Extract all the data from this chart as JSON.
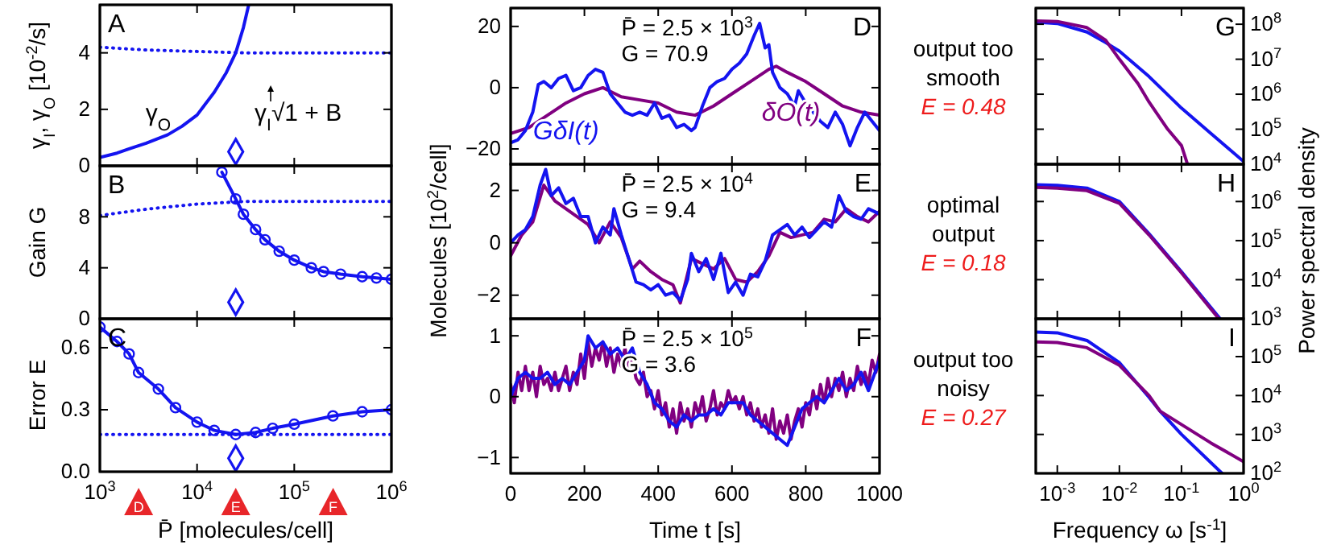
{
  "chart_data": [
    {
      "type": "line",
      "title": "A",
      "ylabel": "γ$_{I}$, γ$_{O}$ [10$^{-2}$/s]",
      "log": "x",
      "grid": false,
      "tick_labels": "y",
      "xlim": [
        1000,
        1000000
      ],
      "xticks": [
        {
          "value": 1000,
          "label": null
        },
        {
          "value": 10000,
          "label": null
        },
        {
          "value": 100000,
          "label": null
        },
        {
          "value": 1000000,
          "label": null
        }
      ],
      "ylim": [
        0,
        5.7
      ],
      "yticks": [
        0,
        2,
        4
      ],
      "annotations": [
        "γ$_{O}$",
        "γ$_{I}$√1 + B"
      ],
      "series": [
        {
          "color": "#1414f0",
          "line_style": "solid",
          "x": [
            1000,
            1500,
            2000,
            3000,
            5000,
            7000,
            10000,
            15000,
            20000,
            25000,
            30000,
            34000
          ],
          "values": [
            0.3,
            0.45,
            0.6,
            0.8,
            1.1,
            1.4,
            1.8,
            2.6,
            3.3,
            4.0,
            4.9,
            5.7
          ]
        },
        {
          "color": "#1414f0",
          "line_style": "dotted",
          "x": [
            1000,
            3000,
            10000,
            30000,
            100000,
            1000000
          ],
          "values": [
            4.2,
            4.1,
            4.05,
            4.0,
            4.0,
            4.0
          ]
        },
        {
          "type": "scatter",
          "marker": "diamond",
          "color": "#1414f0",
          "x": [
            25000
          ],
          "values": [
            0.5
          ]
        }
      ]
    },
    {
      "type": "line",
      "title": "B",
      "ylabel": "Gain G",
      "log": "x",
      "grid": false,
      "tick_labels": "y",
      "xlim": [
        1000,
        1000000
      ],
      "xticks": [
        {
          "value": 1000,
          "label": null
        },
        {
          "value": 10000,
          "label": null
        },
        {
          "value": 100000,
          "label": null
        },
        {
          "value": 1000000,
          "label": null
        }
      ],
      "ylim": [
        0,
        12
      ],
      "yticks": [
        0,
        4,
        8
      ],
      "series": [
        {
          "color": "#1414f0",
          "line_style": "solid",
          "marker": "circle",
          "x": [
            18000,
            25000,
            30000,
            40000,
            50000,
            70000,
            100000,
            150000,
            200000,
            300000,
            500000,
            700000,
            1000000
          ],
          "values": [
            11.5,
            9.4,
            8.2,
            7.0,
            6.2,
            5.3,
            4.6,
            4.0,
            3.7,
            3.5,
            3.3,
            3.2,
            3.1
          ]
        },
        {
          "color": "#1414f0",
          "line_style": "dotted",
          "x": [
            1000,
            3000,
            10000,
            30000,
            100000,
            1000000
          ],
          "values": [
            8.1,
            8.6,
            9.0,
            9.2,
            9.2,
            9.2
          ]
        },
        {
          "type": "scatter",
          "marker": "diamond",
          "color": "#1414f0",
          "x": [
            25000
          ],
          "values": [
            1.3
          ]
        }
      ]
    },
    {
      "type": "line",
      "title": "C",
      "ylabel": "Error E",
      "xlabel": "P̄ [molecules/cell]",
      "log": "x",
      "grid": false,
      "xlim": [
        1000,
        1000000
      ],
      "xticks": [
        {
          "value": 1000,
          "label": "10$^{3}$"
        },
        {
          "value": 10000,
          "label": "10$^{4}$"
        },
        {
          "value": 100000,
          "label": "10$^{5}$"
        },
        {
          "value": 1000000,
          "label": "10$^{6}$"
        }
      ],
      "ylim": [
        0,
        0.74
      ],
      "yticks": [
        {
          "value": 0,
          "label": "0.0"
        },
        {
          "value": 0.3,
          "label": "0.3"
        },
        {
          "value": 0.6,
          "label": "0.6"
        }
      ],
      "annotations": [
        "D",
        "E",
        "F"
      ],
      "series": [
        {
          "color": "#1414f0",
          "line_style": "solid",
          "marker": "circle",
          "x": [
            1000,
            1500,
            2000,
            2500,
            4000,
            6000,
            10000,
            15000,
            25000,
            40000,
            60000,
            100000,
            250000,
            500000,
            1000000
          ],
          "values": [
            0.7,
            0.63,
            0.57,
            0.48,
            0.4,
            0.31,
            0.24,
            0.2,
            0.18,
            0.19,
            0.21,
            0.23,
            0.27,
            0.29,
            0.3
          ]
        },
        {
          "color": "#1414f0",
          "line_style": "dotted",
          "x": [
            1000,
            1000000
          ],
          "values": [
            0.18,
            0.18
          ]
        },
        {
          "type": "scatter",
          "marker": "diamond",
          "color": "#1414f0",
          "x": [
            25000
          ],
          "values": [
            0.065
          ]
        }
      ]
    },
    {
      "type": "line",
      "title": "D",
      "grid": false,
      "tick_labels": "y",
      "xlim": [
        0,
        1000
      ],
      "xticks": [
        {
          "value": 0,
          "label": null
        },
        {
          "value": 200,
          "label": null
        },
        {
          "value": 400,
          "label": null
        },
        {
          "value": 600,
          "label": null
        },
        {
          "value": 800,
          "label": null
        },
        {
          "value": 1000,
          "label": null
        }
      ],
      "ylim": [
        -25,
        26
      ],
      "yticks": [
        {
          "value": -20,
          "label": "−20"
        },
        0,
        20
      ],
      "annotations": [
        "P̄ = 2.5 × 10$^{3}$",
        "G = 70.9"
      ],
      "series": [
        {
          "name": "δO(t)",
          "color": "#800080",
          "x": [
            0,
            50,
            100,
            150,
            200,
            250,
            300,
            350,
            400,
            450,
            500,
            550,
            600,
            650,
            700,
            720,
            750,
            800,
            850,
            900,
            950,
            1000
          ],
          "values": [
            -15,
            -13,
            -9,
            -5,
            -2,
            0,
            -3,
            -4,
            -5,
            -8,
            -9,
            -6,
            -2,
            2,
            6,
            7,
            5,
            2,
            -2,
            -6,
            -8,
            -9
          ]
        },
        {
          "name": "GδI(t)",
          "color": "#1414f0",
          "x": [
            0,
            20,
            40,
            60,
            75,
            90,
            110,
            130,
            150,
            170,
            190,
            210,
            230,
            250,
            270,
            290,
            310,
            330,
            350,
            370,
            390,
            410,
            430,
            450,
            470,
            490,
            500,
            520,
            540,
            560,
            580,
            600,
            620,
            640,
            660,
            675,
            690,
            700,
            710,
            730,
            750,
            770,
            780,
            800,
            820,
            840,
            860,
            880,
            900,
            920,
            940,
            960,
            980,
            1000
          ],
          "values": [
            -18,
            -17,
            -14,
            -8,
            1,
            2,
            0,
            3,
            4,
            -1,
            0,
            4,
            6,
            5,
            -2,
            -5,
            -8,
            -9,
            -8,
            -9,
            -5,
            -10,
            -9,
            -13,
            -12,
            -14,
            -13,
            -6,
            0,
            2,
            3,
            6,
            8,
            11,
            17,
            21,
            13,
            14,
            5,
            0,
            -2,
            -6,
            -1,
            -5,
            -8,
            -11,
            -13,
            -8,
            -12,
            -19,
            -13,
            -8,
            -11,
            -14
          ]
        }
      ]
    },
    {
      "type": "line",
      "title": "E",
      "ylabel": "Molecules [10$^{2}$/cell]",
      "grid": false,
      "tick_labels": "y",
      "xlim": [
        0,
        1000
      ],
      "xticks": [
        {
          "value": 0,
          "label": null
        },
        {
          "value": 200,
          "label": null
        },
        {
          "value": 400,
          "label": null
        },
        {
          "value": 600,
          "label": null
        },
        {
          "value": 800,
          "label": null
        },
        {
          "value": 1000,
          "label": null
        }
      ],
      "ylim": [
        -2.9,
        3.0
      ],
      "yticks": [
        {
          "value": -2,
          "label": "−2"
        },
        0,
        2
      ],
      "annotations": [
        "P̄ = 2.5 × 10$^{4}$",
        "G = 9.4"
      ],
      "series": [
        {
          "color": "#800080",
          "x": [
            0,
            30,
            60,
            90,
            120,
            150,
            180,
            210,
            240,
            270,
            300,
            330,
            350,
            380,
            410,
            440,
            460,
            490,
            520,
            550,
            580,
            610,
            640,
            670,
            700,
            730,
            760,
            790,
            820,
            850,
            880,
            910,
            940,
            970,
            1000
          ],
          "values": [
            -0.5,
            0.3,
            0.8,
            2.2,
            1.6,
            1.3,
            1.0,
            0.7,
            0,
            0.8,
            0.2,
            -1.0,
            -0.7,
            -1.1,
            -1.4,
            -1.6,
            -2.3,
            -0.6,
            -0.8,
            -1.0,
            -0.6,
            -1.4,
            -1.5,
            -1.1,
            -0.5,
            0.4,
            0.2,
            0.3,
            0.4,
            0.9,
            0.8,
            1.3,
            1.0,
            0.8,
            1.2
          ]
        },
        {
          "color": "#1414f0",
          "x": [
            0,
            20,
            40,
            60,
            80,
            95,
            110,
            130,
            150,
            170,
            190,
            210,
            230,
            250,
            270,
            280,
            300,
            320,
            340,
            360,
            380,
            400,
            420,
            440,
            460,
            480,
            490,
            510,
            530,
            550,
            570,
            590,
            610,
            630,
            650,
            670,
            690,
            710,
            730,
            750,
            770,
            790,
            810,
            830,
            850,
            870,
            890,
            910,
            930,
            950,
            970,
            1000
          ],
          "values": [
            0,
            0.3,
            0.5,
            1.0,
            2.2,
            2.8,
            1.8,
            2.1,
            1.5,
            1.7,
            1.0,
            1.0,
            0,
            0.6,
            0.3,
            1.3,
            0.3,
            -0.6,
            -1.5,
            -1.6,
            -1.8,
            -1.6,
            -2.0,
            -1.9,
            -2.2,
            -1.4,
            -0.4,
            -1.1,
            -0.6,
            -1.4,
            -0.4,
            -1.9,
            -1.5,
            -2.0,
            -1.2,
            -1.3,
            -0.7,
            0.3,
            0.5,
            0.7,
            0.3,
            0.6,
            0.2,
            0.5,
            0.8,
            0.6,
            1.8,
            1.2,
            1.0,
            0.9,
            1.3,
            1.1
          ]
        }
      ]
    },
    {
      "type": "line",
      "title": "F",
      "xlabel": "Time t [s]",
      "grid": false,
      "xlim": [
        0,
        1000
      ],
      "xticks": [
        0,
        200,
        400,
        600,
        800,
        1000
      ],
      "ylim": [
        -1.26,
        1.28
      ],
      "yticks": [
        {
          "value": -1,
          "label": "−1"
        },
        0,
        1
      ],
      "annotations": [
        "P̄ = 2.5 × 10$^{5}$",
        "G = 3.6"
      ],
      "series": [
        {
          "color": "#800080",
          "x": [
            0,
            10,
            20,
            30,
            40,
            50,
            60,
            70,
            80,
            90,
            100,
            110,
            120,
            130,
            140,
            150,
            160,
            170,
            180,
            190,
            200,
            210,
            220,
            230,
            240,
            250,
            260,
            270,
            280,
            290,
            300,
            310,
            320,
            330,
            340,
            350,
            360,
            370,
            380,
            390,
            400,
            410,
            420,
            430,
            440,
            450,
            460,
            470,
            480,
            490,
            500,
            510,
            520,
            530,
            540,
            550,
            560,
            570,
            580,
            590,
            600,
            610,
            620,
            630,
            640,
            650,
            660,
            670,
            680,
            690,
            700,
            710,
            720,
            730,
            740,
            750,
            760,
            770,
            780,
            790,
            800,
            810,
            820,
            830,
            840,
            850,
            860,
            870,
            880,
            890,
            900,
            910,
            920,
            930,
            940,
            950,
            960,
            970,
            980,
            990,
            1000
          ],
          "values": [
            0.2,
            -0.1,
            0.4,
            0.1,
            0.5,
            0.1,
            0.4,
            0,
            0.5,
            0.2,
            0.3,
            0.1,
            0.4,
            0.1,
            0.3,
            0.5,
            0.1,
            0.4,
            0.2,
            0.7,
            0.3,
            0.9,
            0.5,
            0.8,
            0.6,
            0.9,
            0.5,
            0.8,
            0.4,
            0.7,
            0.5,
            0.8,
            0.4,
            0.6,
            0.3,
            0.2,
            0.4,
            0,
            0.1,
            -0.2,
            0.1,
            -0.3,
            -0.1,
            -0.5,
            -0.2,
            -0.6,
            -0.1,
            -0.4,
            -0.2,
            -0.5,
            -0.1,
            -0.3,
            0,
            -0.4,
            -0.2,
            0.1,
            -0.3,
            -0.1,
            -0.2,
            0.1,
            -0.1,
            0,
            -0.2,
            0,
            -0.3,
            -0.1,
            -0.4,
            -0.2,
            -0.5,
            -0.3,
            -0.6,
            -0.2,
            -0.7,
            -0.4,
            -0.6,
            -0.3,
            -0.7,
            -0.4,
            -0.2,
            -0.5,
            -0.1,
            -0.3,
            0.1,
            -0.2,
            0.2,
            -0.1,
            0.3,
            0,
            0.3,
            0.1,
            0.4,
            0,
            0.3,
            0.1,
            0.5,
            0.2,
            0.4,
            0.2,
            0.6,
            0.4,
            0.7
          ]
        },
        {
          "color": "#1414f0",
          "x": [
            0,
            20,
            40,
            60,
            80,
            100,
            120,
            140,
            160,
            180,
            200,
            210,
            230,
            250,
            270,
            290,
            310,
            330,
            350,
            370,
            390,
            410,
            430,
            450,
            470,
            490,
            510,
            530,
            550,
            570,
            590,
            610,
            630,
            650,
            670,
            690,
            710,
            730,
            750,
            770,
            790,
            810,
            830,
            850,
            870,
            890,
            910,
            930,
            950,
            970,
            1000
          ],
          "values": [
            0,
            0.3,
            0.4,
            0.3,
            0.3,
            0.4,
            0.2,
            0.3,
            0.2,
            0.4,
            0.6,
            1.0,
            0.8,
            0.9,
            0.7,
            0.8,
            0.6,
            0.8,
            0.4,
            0.2,
            -0.1,
            -0.2,
            -0.4,
            -0.5,
            -0.3,
            -0.4,
            -0.3,
            -0.3,
            -0.2,
            -0.3,
            -0.1,
            -0.1,
            -0.1,
            -0.3,
            -0.4,
            -0.5,
            -0.6,
            -0.7,
            -0.8,
            -0.5,
            -0.2,
            -0.1,
            0,
            -0.1,
            0.1,
            0.3,
            0.1,
            0.2,
            0.4,
            0.1,
            0.6
          ]
        }
      ]
    },
    {
      "type": "line",
      "title": "G",
      "log": "xy",
      "grid": false,
      "tick_labels": "y",
      "xlim": [
        0.00045,
        1
      ],
      "xticks": [
        {
          "value": 0.001,
          "label": null
        },
        {
          "value": 0.01,
          "label": null
        },
        {
          "value": 0.1,
          "label": null
        },
        {
          "value": 1,
          "label": null
        }
      ],
      "ylim": [
        10000,
        290000000
      ],
      "yticks": [
        {
          "value": 10000,
          "label": "10$^{4}$"
        },
        {
          "value": 100000,
          "label": "10$^{5}$"
        },
        {
          "value": 1000000,
          "label": "10$^{6}$"
        },
        {
          "value": 10000000,
          "label": "10$^{7}$"
        },
        {
          "value": 100000000,
          "label": "10$^{8}$"
        }
      ],
      "annotations": [
        "output too smooth",
        "E = 0.48"
      ],
      "series": [
        {
          "color": "#1414f0",
          "x": [
            0.00045,
            0.001,
            0.003,
            0.006,
            0.01,
            0.03,
            0.1,
            0.3,
            1
          ],
          "values": [
            115000000,
            105000000,
            60000000,
            30000000,
            17000000,
            3200000,
            400000,
            75000,
            12000
          ]
        },
        {
          "color": "#800080",
          "x": [
            0.00045,
            0.001,
            0.003,
            0.006,
            0.01,
            0.02,
            0.03,
            0.06,
            0.1,
            0.125
          ],
          "values": [
            125000000,
            120000000,
            80000000,
            35000000,
            10000000,
            2000000,
            600000,
            100000,
            34000,
            10000
          ]
        }
      ]
    },
    {
      "type": "line",
      "title": "H",
      "ylabel": "Power spectral density",
      "log": "xy",
      "grid": false,
      "tick_labels": "y",
      "xlim": [
        0.00045,
        1
      ],
      "xticks": [
        {
          "value": 0.001,
          "label": null
        },
        {
          "value": 0.01,
          "label": null
        },
        {
          "value": 0.1,
          "label": null
        },
        {
          "value": 1,
          "label": null
        }
      ],
      "ylim": [
        1000,
        9000000
      ],
      "yticks": [
        {
          "value": 1000,
          "label": "10$^{3}$"
        },
        {
          "value": 10000,
          "label": "10$^{4}$"
        },
        {
          "value": 100000,
          "label": "10$^{5}$"
        },
        {
          "value": 1000000,
          "label": "10$^{6}$"
        }
      ],
      "annotations": [
        "optimal output",
        "E = 0.18"
      ],
      "series": [
        {
          "color": "#1414f0",
          "x": [
            0.00045,
            0.001,
            0.003,
            0.01,
            0.03,
            0.1,
            0.42
          ],
          "values": [
            2700000,
            2600000,
            2200000,
            1000000,
            150000,
            16000,
            1000
          ]
        },
        {
          "color": "#800080",
          "x": [
            0.00045,
            0.001,
            0.003,
            0.01,
            0.03,
            0.1,
            0.4
          ],
          "values": [
            2300000,
            2200000,
            1900000,
            900000,
            140000,
            15000,
            1000
          ]
        }
      ]
    },
    {
      "type": "line",
      "title": "I",
      "xlabel": "Frequency ω [s$^{-1}$]",
      "log": "xy",
      "grid": false,
      "xlim": [
        0.00045,
        1
      ],
      "xticks": [
        {
          "value": 0.001,
          "label": "10$^{-3}$"
        },
        {
          "value": 0.01,
          "label": "10$^{-2}$"
        },
        {
          "value": 0.1,
          "label": "10$^{-1}$"
        },
        {
          "value": 1,
          "label": "10$^{0}$"
        }
      ],
      "ylim": [
        100,
        940000
      ],
      "yticks": [
        {
          "value": 100,
          "label": "10$^{2}$"
        },
        {
          "value": 1000,
          "label": "10$^{3}$"
        },
        {
          "value": 10000,
          "label": "10$^{4}$"
        },
        {
          "value": 100000,
          "label": "10$^{5}$"
        }
      ],
      "annotations": [
        "output too noisy",
        "E = 0.27"
      ],
      "series": [
        {
          "color": "#1414f0",
          "x": [
            0.00045,
            0.001,
            0.003,
            0.01,
            0.03,
            0.045,
            0.1,
            0.45
          ],
          "values": [
            430000,
            410000,
            260000,
            70000,
            9000,
            4000,
            1000,
            100
          ]
        },
        {
          "color": "#800080",
          "x": [
            0.00045,
            0.001,
            0.003,
            0.01,
            0.03,
            0.045,
            0.1,
            0.3,
            1
          ],
          "values": [
            240000,
            230000,
            170000,
            60000,
            10000,
            4000,
            1800,
            600,
            200
          ]
        }
      ]
    }
  ]
}
